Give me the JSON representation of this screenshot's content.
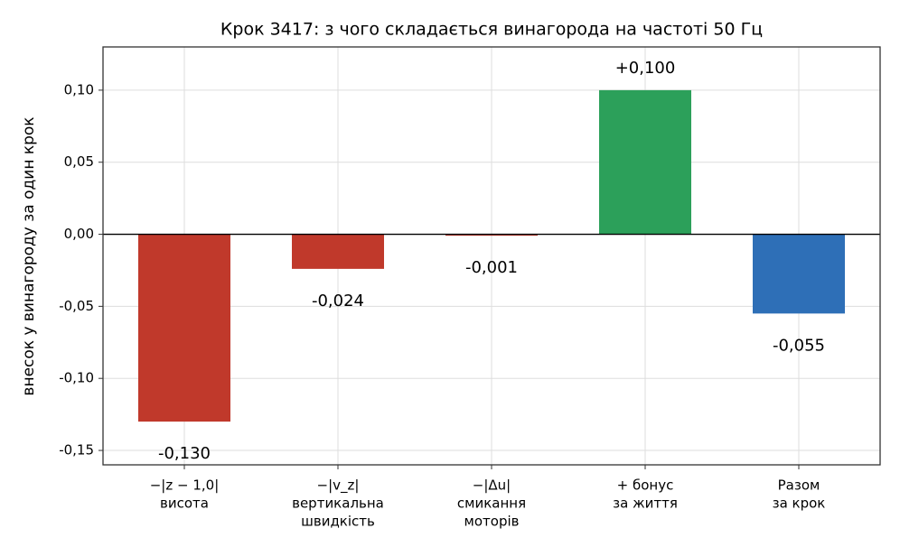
{
  "chart_data": {
    "type": "bar",
    "title": "Крок 3417: з чого складається винагорода на частоті 50 Гц",
    "y_label": "внесок у винагороду за один крок",
    "categories": [
      [
        "−|z − 1,0|",
        "висота"
      ],
      [
        "−|v_z|",
        "вертикальна",
        "швидкість"
      ],
      [
        "−|Δu|",
        "смикання",
        "моторів"
      ],
      [
        "+ бонус",
        "за життя"
      ],
      [
        "Разом",
        "за крок"
      ]
    ],
    "values": [
      -0.13,
      -0.024,
      -0.001,
      0.1,
      -0.055
    ],
    "value_labels": [
      "-0,130",
      "-0,024",
      "-0,001",
      "+0,100",
      "-0,055"
    ],
    "colors": [
      "#c0392b",
      "#c0392b",
      "#c0392b",
      "#2ca05a",
      "#2e6fb7"
    ],
    "ylim": [
      -0.16,
      0.13
    ],
    "yticks": [
      {
        "value": -0.15,
        "label": "-0,15"
      },
      {
        "value": -0.1,
        "label": "-0,10"
      },
      {
        "value": -0.05,
        "label": "-0,05"
      },
      {
        "value": 0,
        "label": "0,00"
      },
      {
        "value": 0.05,
        "label": "0,05"
      },
      {
        "value": 0.1,
        "label": "0,10"
      }
    ],
    "grid": true
  }
}
